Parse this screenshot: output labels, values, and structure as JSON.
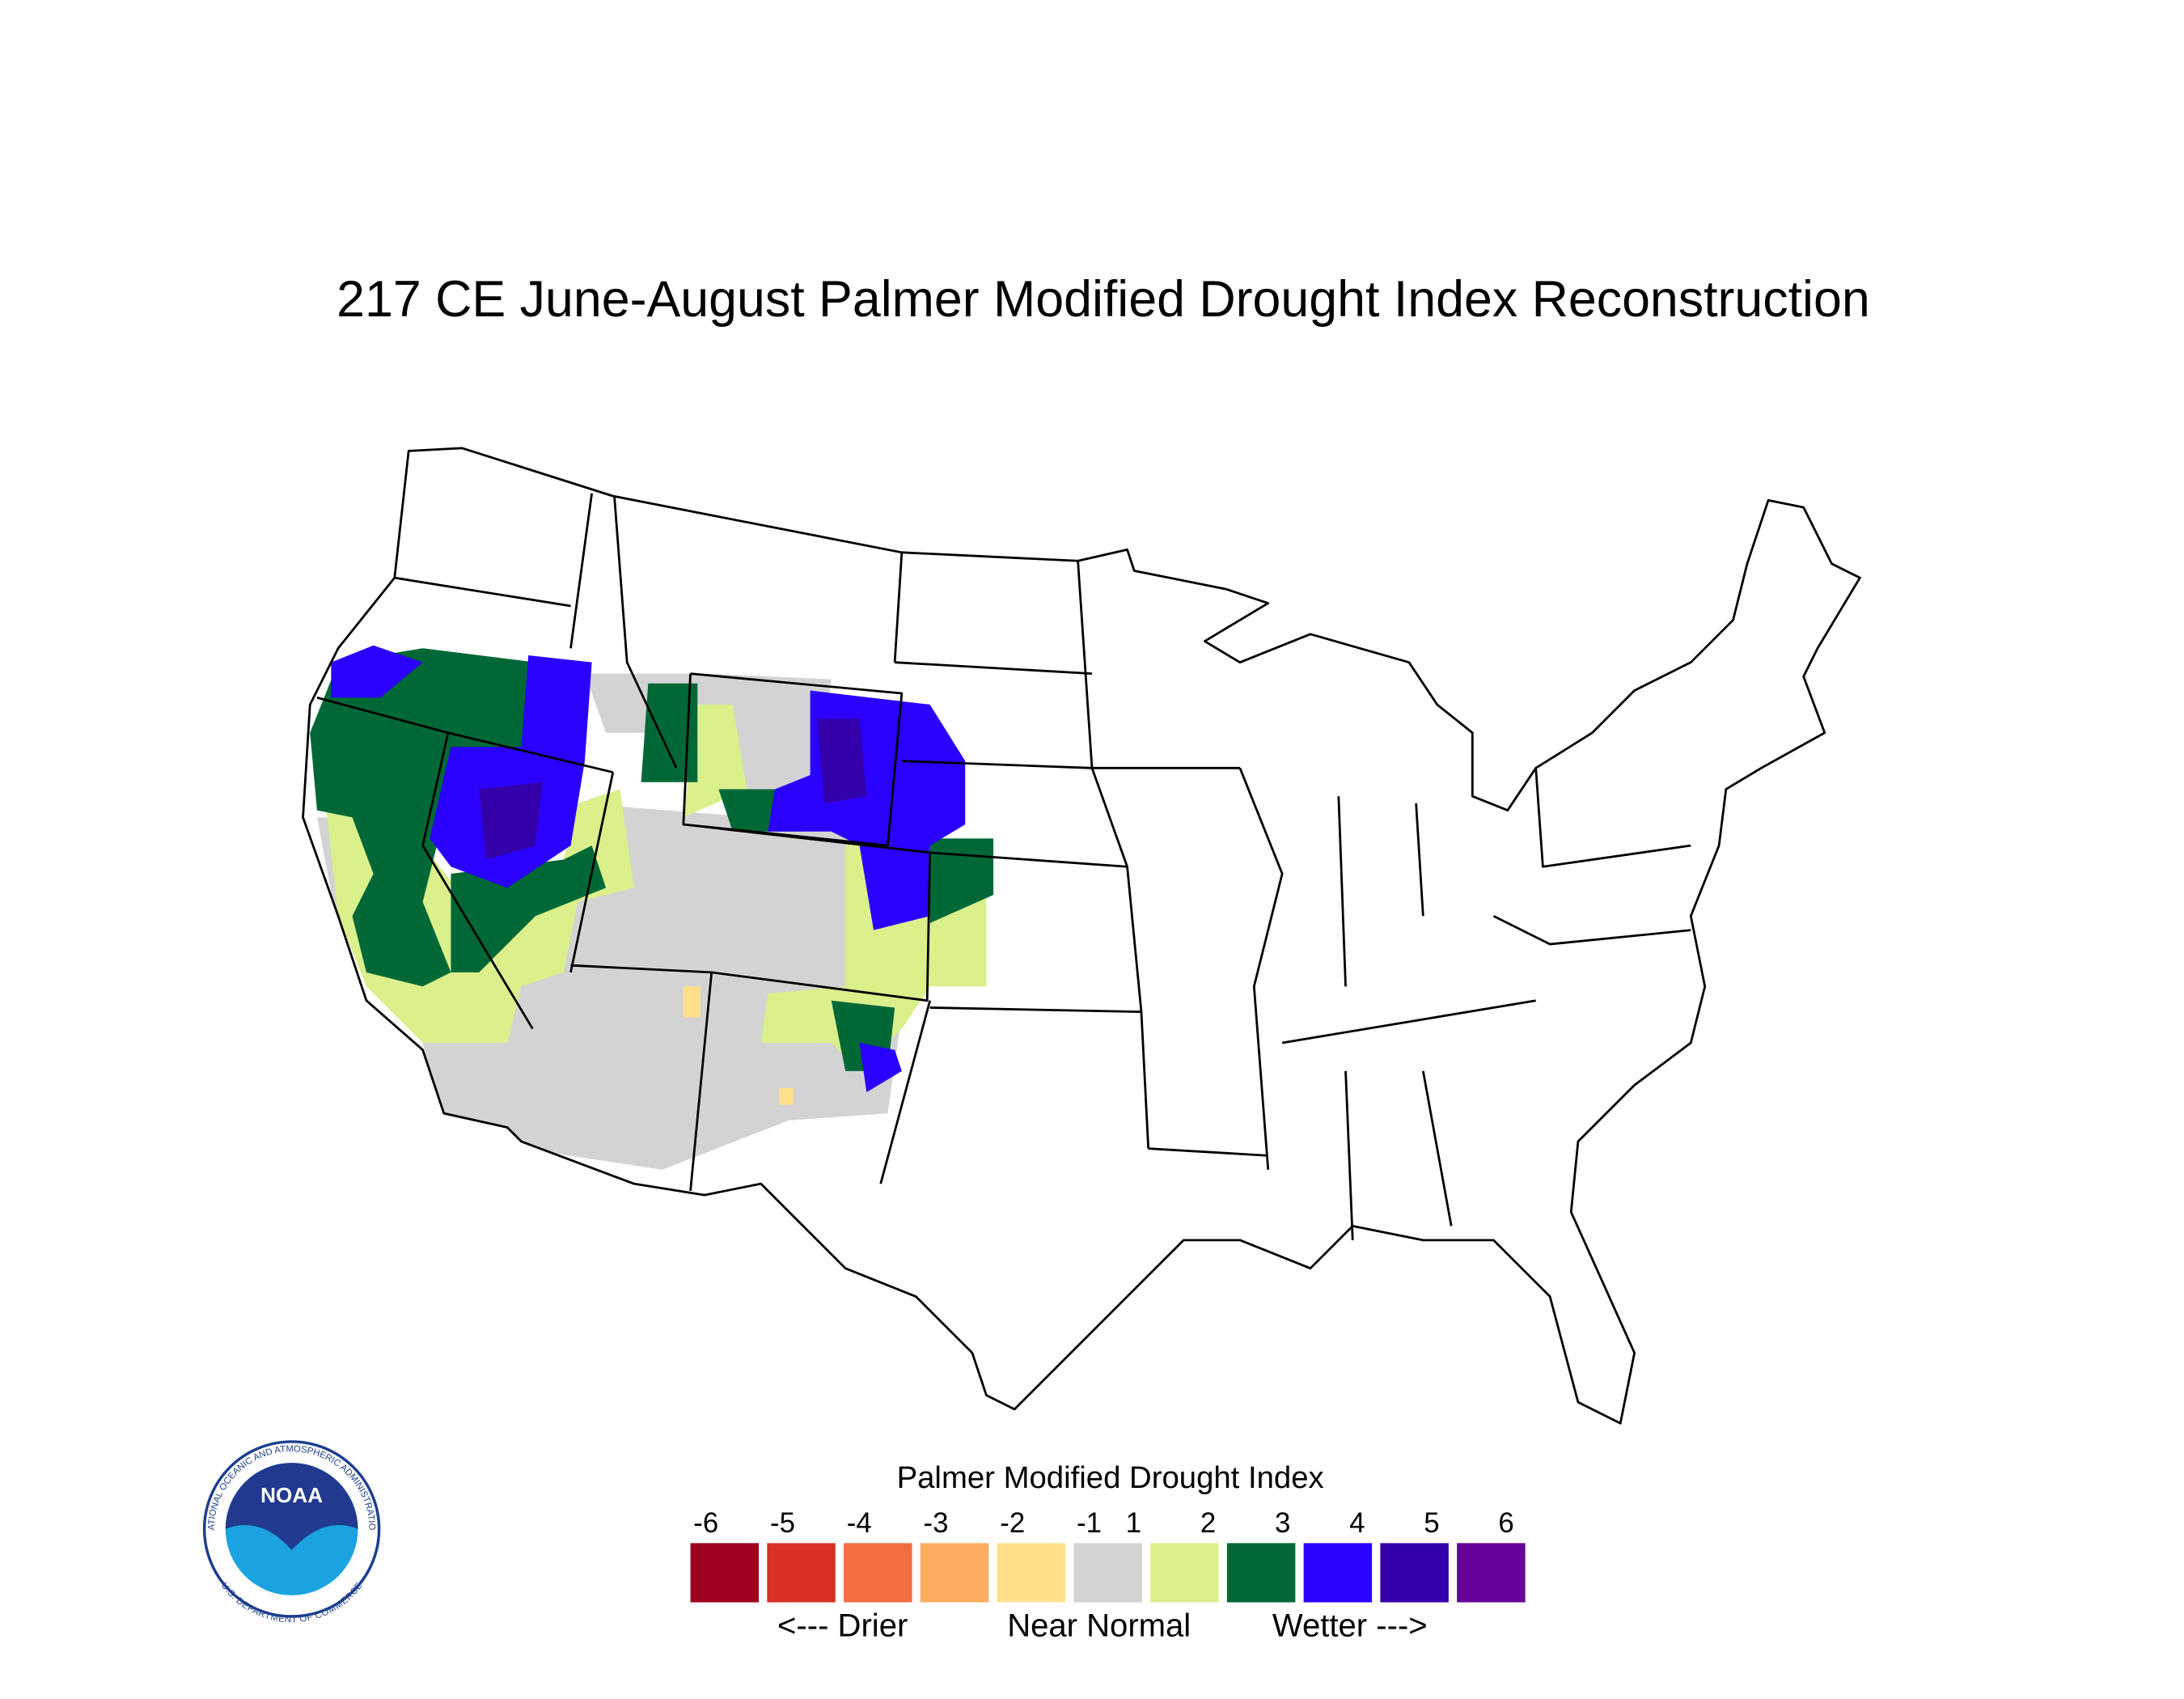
{
  "title": "217 CE  June-August  Palmer Modified Drought Index Reconstruction",
  "legend": {
    "title": "Palmer Modified Drought Index",
    "ticks": [
      -6,
      -5,
      -4,
      -3,
      -2,
      -1,
      1,
      2,
      3,
      4,
      5,
      6
    ],
    "colors": [
      "#a0001f",
      "#d63027",
      "#f26d42",
      "#fdad60",
      "#fee08b",
      "#d3d3d3",
      "#d9f08b",
      "#006837",
      "#2a00ff",
      "#3300aa",
      "#660099"
    ],
    "captions": [
      "<--- Drier",
      "Near Normal",
      "Wetter --->"
    ]
  },
  "logo": {
    "text": "NOAA",
    "ring_top": "NATIONAL OCEANIC AND ATMOSPHERIC ADMINISTRATION",
    "ring_bottom": "U.S. DEPARTMENT OF COMMERCE"
  }
}
